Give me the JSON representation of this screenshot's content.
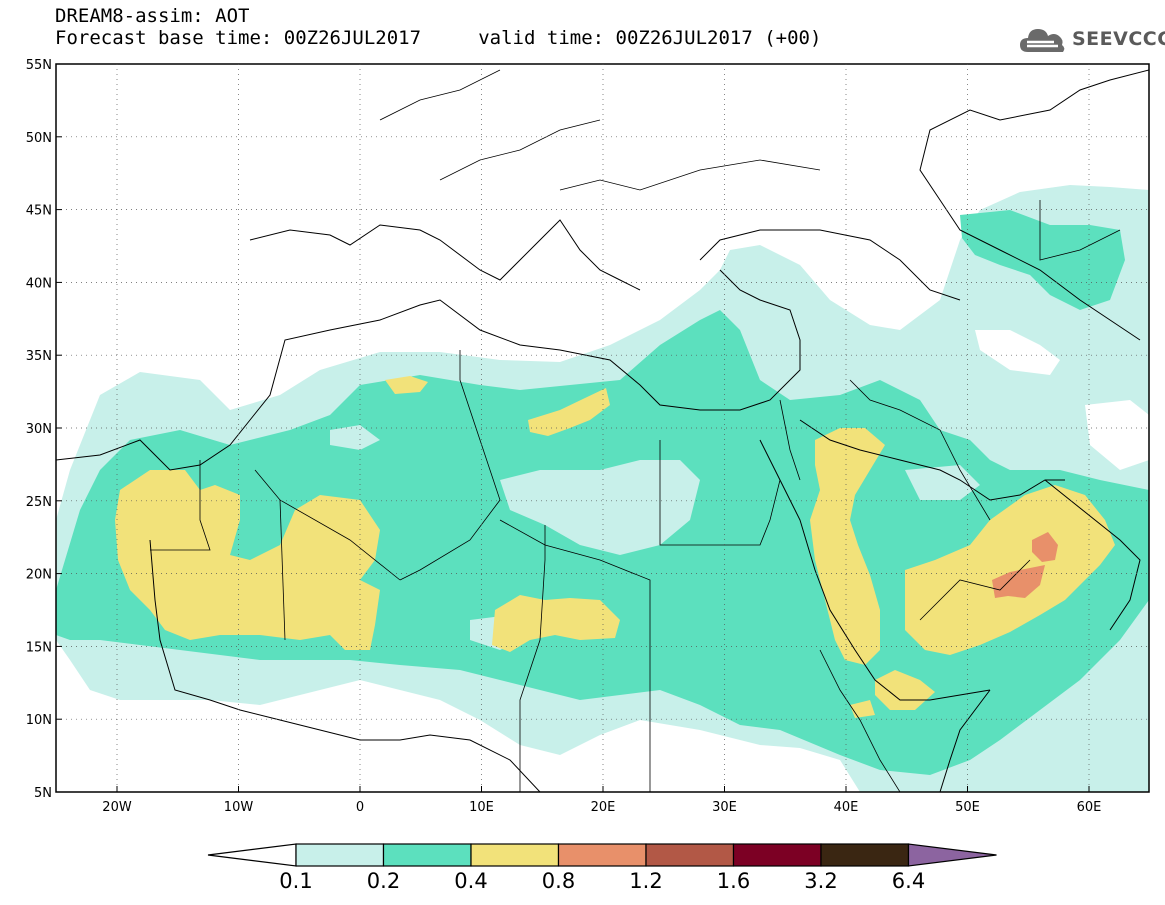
{
  "header": {
    "title_line1": "DREAM8-assim: AOT",
    "title_line2": "Forecast base time: 00Z26JUL2017     valid time: 00Z26JUL2017 (+00)",
    "logo_text": "SEEVCCC"
  },
  "map": {
    "lat_labels": [
      "55N",
      "50N",
      "45N",
      "40N",
      "35N",
      "30N",
      "25N",
      "20N",
      "15N",
      "10N",
      "5N"
    ],
    "lon_labels": [
      "20W",
      "10W",
      "0",
      "10E",
      "20E",
      "30E",
      "40E",
      "50E",
      "60E"
    ],
    "grid": "dotted"
  },
  "colorbar": {
    "labels": [
      "0.1",
      "0.2",
      "0.4",
      "0.8",
      "1.2",
      "1.6",
      "3.2",
      "6.4"
    ],
    "colors": [
      "#c8f0ea",
      "#5ce0be",
      "#f2e27a",
      "#e8906a",
      "#b25846",
      "#7c0024",
      "#3a2612",
      "#8c64a0"
    ],
    "under_color": "#ffffff"
  },
  "colors": {
    "level1": "#c8f0ea",
    "level2": "#5ce0be",
    "level3": "#f2e27a",
    "level4": "#e8906a",
    "background": "#ffffff"
  }
}
